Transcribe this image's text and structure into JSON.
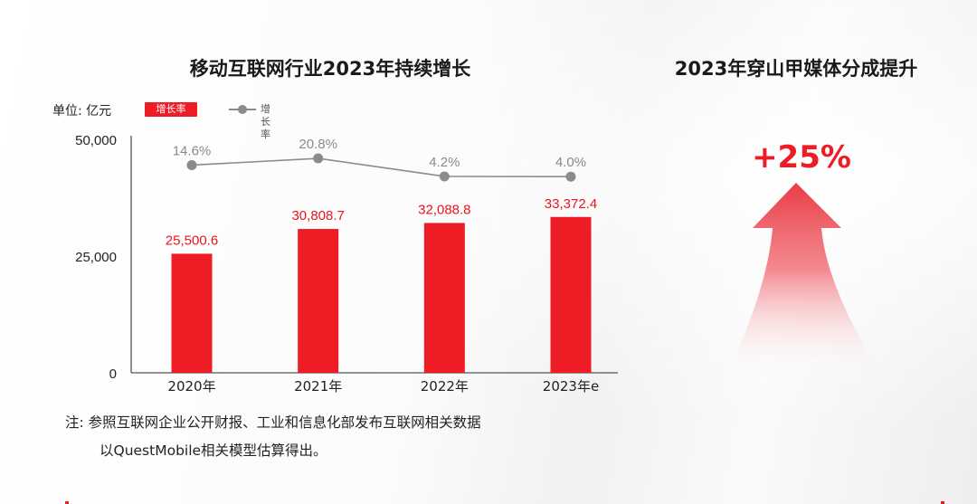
{
  "left_panel": {
    "title": "移动互联网行业2023年持续增长",
    "unit_label": "单位: 亿元",
    "legend_bar": "增长率",
    "legend_line": "增长率",
    "note_line1": "注: 参照互联网企业公开财报、工业和信息化部发布互联网相关数据",
    "note_line2": "以QuestMobile相关模型估算得出。"
  },
  "right_panel": {
    "title": "2023年穿山甲媒体分成提升",
    "growth_value": "+25%"
  },
  "colors": {
    "bar": "#ee1c25",
    "line": "#8b8b8b",
    "label_red": "#e8141f"
  },
  "chart_data": {
    "type": "bar",
    "title": "移动互联网行业2023年持续增长",
    "ylabel": "单位: 亿元",
    "categories": [
      "2020年",
      "2021年",
      "2022年",
      "2023年e"
    ],
    "ylim": [
      0,
      50000
    ],
    "yticks": [
      "0",
      "25,000",
      "50,000"
    ],
    "ytick_values": [
      0,
      25000,
      50000
    ],
    "series": [
      {
        "name": "增长率",
        "type": "bar",
        "values": [
          25500.6,
          30808.7,
          32088.8,
          33372.4
        ],
        "labels": [
          "25,500.6",
          "30,808.7",
          "32,088.8",
          "33,372.4"
        ]
      },
      {
        "name": "增长率",
        "type": "line",
        "values": [
          14.6,
          20.8,
          4.2,
          4.0
        ],
        "labels": [
          "14.6%",
          "20.8%",
          "4.2%",
          "4.0%"
        ]
      }
    ],
    "legend": "top-left",
    "grid": false
  }
}
